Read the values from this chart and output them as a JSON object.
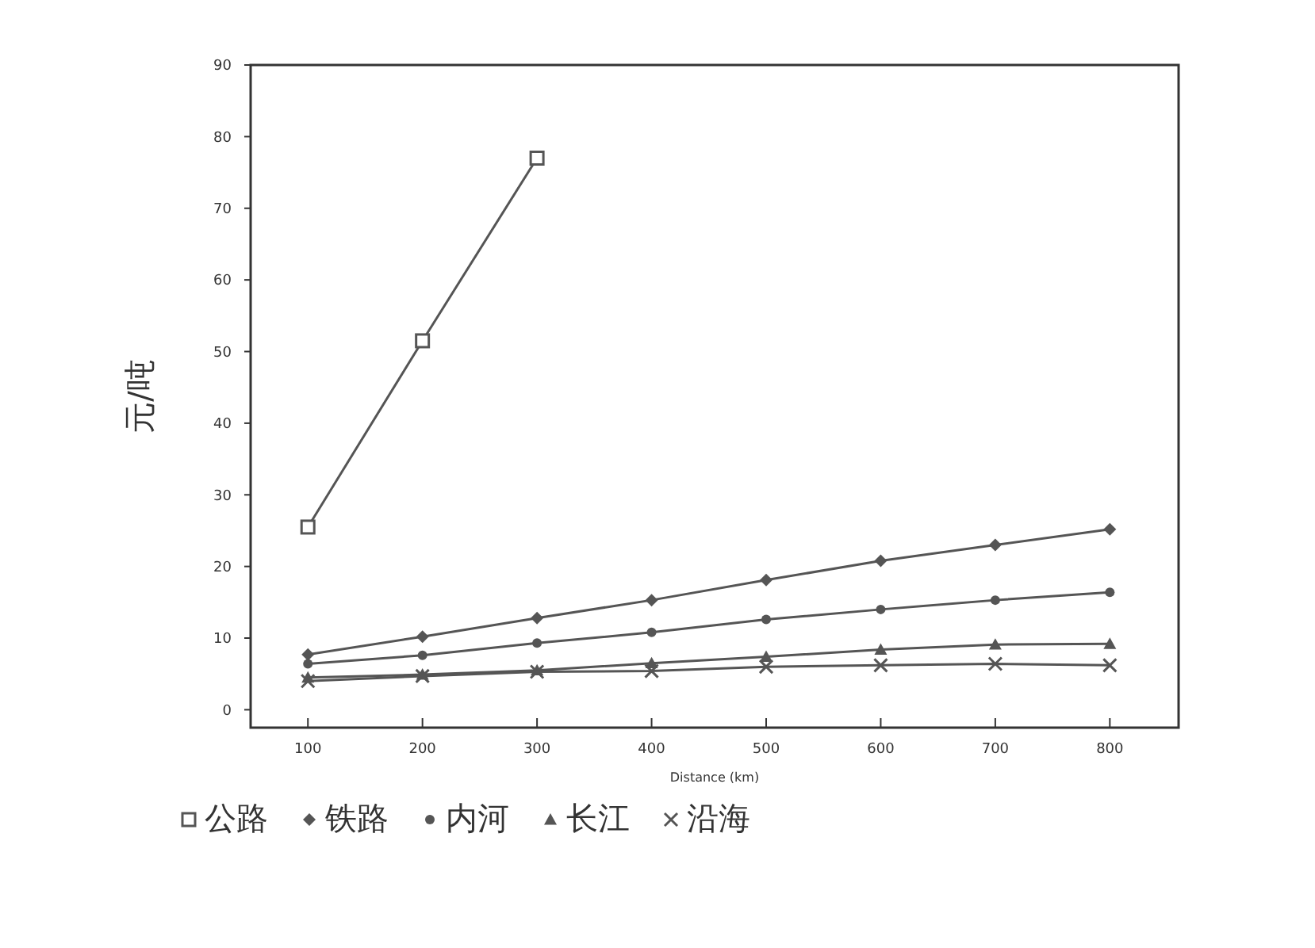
{
  "chart_data": {
    "type": "line",
    "xlabel": "Distance (km)",
    "ylabel": "元/吨",
    "x": [
      100,
      200,
      300,
      400,
      500,
      600,
      700,
      800
    ],
    "xlim": [
      50,
      860
    ],
    "ylim": [
      -2.5,
      90
    ],
    "xticks": [
      100,
      200,
      300,
      400,
      500,
      600,
      700,
      800
    ],
    "yticks": [
      0,
      10,
      20,
      30,
      40,
      50,
      60,
      70,
      80,
      90
    ],
    "grid": false,
    "legend": "bottom",
    "line_style": "solid",
    "series": [
      {
        "name": "公路",
        "color": "#555555",
        "marker": "square",
        "x": [
          100,
          200,
          300
        ],
        "values": [
          25.5,
          51.5,
          77
        ]
      },
      {
        "name": "铁路",
        "color": "#555555",
        "marker": "diamond",
        "values": [
          7.7,
          10.2,
          12.8,
          15.3,
          18.1,
          20.8,
          23,
          25.2
        ]
      },
      {
        "name": "内河",
        "color": "#555555",
        "marker": "circle",
        "values": [
          6.4,
          7.6,
          9.3,
          10.8,
          12.6,
          14,
          15.3,
          16.4
        ]
      },
      {
        "name": "长江",
        "color": "#555555",
        "marker": "triangle",
        "values": [
          4.5,
          4.9,
          5.5,
          6.5,
          7.4,
          8.4,
          9.1,
          9.2
        ]
      },
      {
        "name": "沿海",
        "color": "#555555",
        "marker": "cross",
        "values": [
          4,
          4.7,
          5.3,
          5.4,
          6,
          6.2,
          6.4,
          6.2
        ]
      }
    ]
  }
}
